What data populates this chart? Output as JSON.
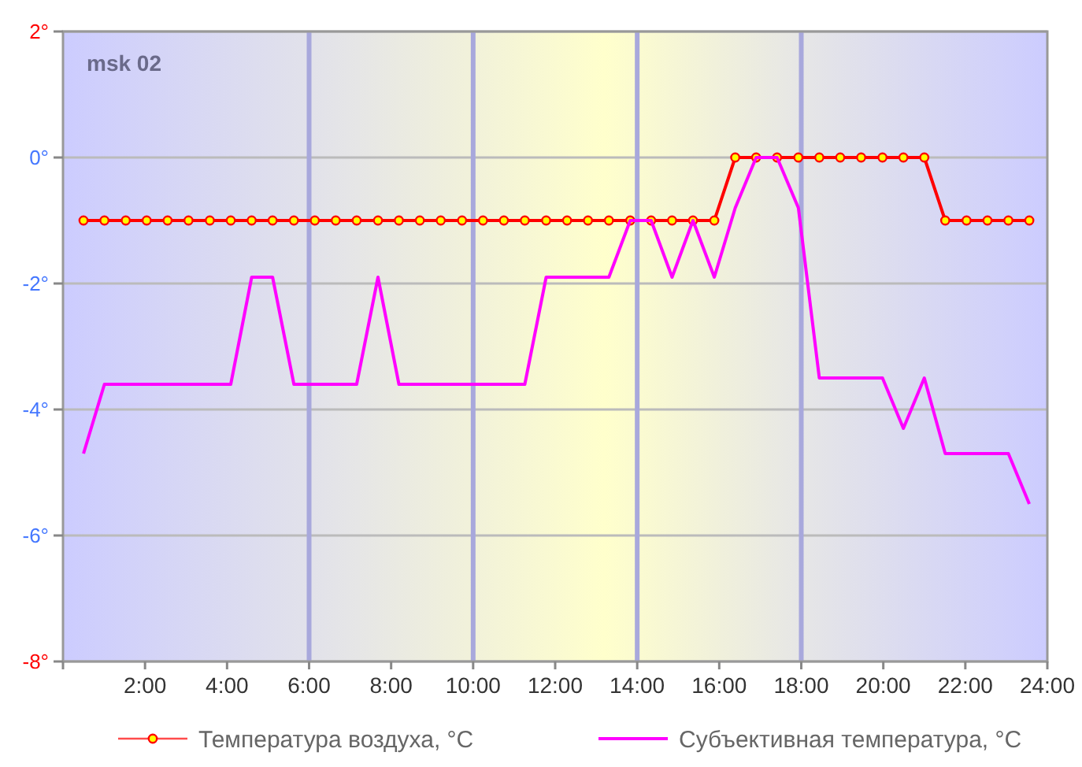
{
  "chart_data": {
    "type": "line",
    "x": [
      0.5,
      1.01,
      1.53,
      2.04,
      2.55,
      3.06,
      3.58,
      4.09,
      4.6,
      5.11,
      5.63,
      6.14,
      6.65,
      7.16,
      7.68,
      8.19,
      8.7,
      9.21,
      9.73,
      10.24,
      10.75,
      11.26,
      11.78,
      12.29,
      12.8,
      13.31,
      13.83,
      14.34,
      14.85,
      15.36,
      15.88,
      16.39,
      16.9,
      17.41,
      17.93,
      18.44,
      18.95,
      19.46,
      19.98,
      20.49,
      21.0,
      21.51,
      22.03,
      22.54,
      23.05,
      23.56
    ],
    "series": [
      {
        "name": "Температура воздуха, °C",
        "color": "#ff0000",
        "marker": "circle",
        "values": [
          -1,
          -1,
          -1,
          -1,
          -1,
          -1,
          -1,
          -1,
          -1,
          -1,
          -1,
          -1,
          -1,
          -1,
          -1,
          -1,
          -1,
          -1,
          -1,
          -1,
          -1,
          -1,
          -1,
          -1,
          -1,
          -1,
          -1,
          -1,
          -1,
          -1,
          -1,
          0,
          0,
          0,
          0,
          0,
          0,
          0,
          0,
          0,
          0,
          -1,
          -1,
          -1,
          -1,
          -1
        ]
      },
      {
        "name": "Субъективная температура, °C",
        "color": "#ff00ff",
        "marker": "none",
        "values": [
          -4.7,
          -3.6,
          -3.6,
          -3.6,
          -3.6,
          -3.6,
          -3.6,
          -3.6,
          -1.9,
          -1.9,
          -3.6,
          -3.6,
          -3.6,
          -3.6,
          -1.9,
          -3.6,
          -3.6,
          -3.6,
          -3.6,
          -3.6,
          -3.6,
          -3.6,
          -1.9,
          -1.9,
          -1.9,
          -1.9,
          -1,
          -1,
          -1.9,
          -1,
          -1.9,
          -0.8,
          0,
          0,
          -0.8,
          -3.5,
          -3.5,
          -3.5,
          -3.5,
          -4.3,
          -3.5,
          -4.7,
          -4.7,
          -4.7,
          -4.7,
          -5.5
        ]
      }
    ],
    "xlim": [
      0,
      24
    ],
    "xticks": [
      {
        "value": 0,
        "label": null
      },
      {
        "value": 2,
        "label": "2:00"
      },
      {
        "value": 4,
        "label": "4:00"
      },
      {
        "value": 6,
        "label": "6:00"
      },
      {
        "value": 8,
        "label": "8:00"
      },
      {
        "value": 10,
        "label": "10:00"
      },
      {
        "value": 12,
        "label": "12:00"
      },
      {
        "value": 14,
        "label": "14:00"
      },
      {
        "value": 16,
        "label": "16:00"
      },
      {
        "value": 18,
        "label": "18:00"
      },
      {
        "value": 20,
        "label": "20:00"
      },
      {
        "value": 22,
        "label": "22:00"
      },
      {
        "value": 24,
        "label": "24:00"
      }
    ],
    "ylim": [
      -8,
      2
    ],
    "yticks": [
      {
        "value": -8,
        "label": "-8°"
      },
      {
        "value": -6,
        "label": "-6°"
      },
      {
        "value": -4,
        "label": "-4°"
      },
      {
        "value": -2,
        "label": "-2°"
      },
      {
        "value": 0,
        "label": "0°"
      },
      {
        "value": 2,
        "label": "2°"
      }
    ],
    "ref_lines": [
      {
        "axis": "x",
        "value": 6,
        "color": "#a8a8dc"
      },
      {
        "axis": "x",
        "value": 10,
        "color": "#a8a8dc"
      },
      {
        "axis": "x",
        "value": 14,
        "color": "#a8a8dc"
      },
      {
        "axis": "x",
        "value": 18,
        "color": "#a8a8dc"
      }
    ],
    "annotations": [
      "msk 02"
    ],
    "grid": "y",
    "legend": "bottom"
  }
}
